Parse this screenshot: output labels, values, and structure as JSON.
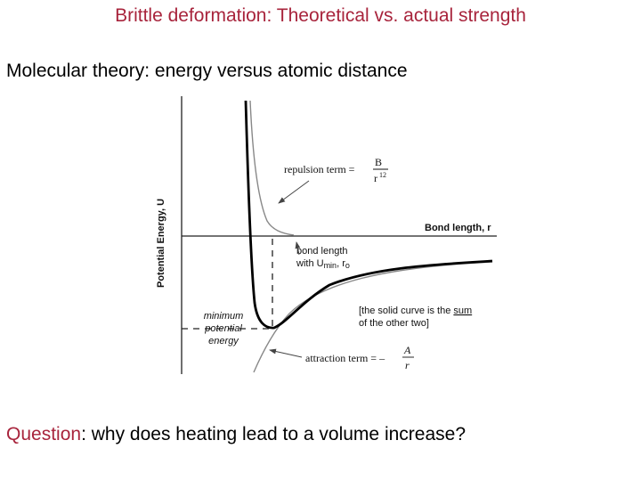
{
  "slide": {
    "title": "Brittle deformation: Theoretical vs. actual strength",
    "subtitle": "Molecular theory: energy versus atomic distance",
    "question_word": "Question",
    "question_rest": ": why does heating lead to a volume increase?"
  },
  "figure": {
    "y_axis_label": "Potential Energy, U",
    "x_axis_label": "Bond  length, r",
    "repulsion_label": "repulsion term  =",
    "repulsion_num": "B",
    "repulsion_den": "r",
    "repulsion_exp": "12",
    "bond_length_line1": "bond length",
    "bond_length_line2_pre": "with U",
    "bond_length_sub": "min",
    "bond_length_line2_post": ", r",
    "bond_length_sub2": "o",
    "sum_line1_pre": "[the solid curve is the ",
    "sum_word": "sum",
    "sum_line2": "of the other two]",
    "min_line1": "minimum",
    "min_line2": "potential",
    "min_line3": "energy",
    "attraction_label": "attraction term  = –",
    "attraction_num": "A",
    "attraction_den": "r"
  },
  "colors": {
    "title": "#a8243c",
    "question_word": "#a8243c",
    "curve_sum": "#000000",
    "curve_components": "#888888"
  }
}
